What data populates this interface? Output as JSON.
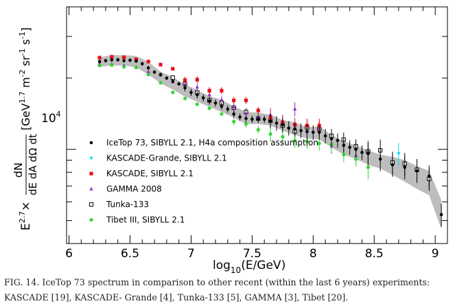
{
  "figure": {
    "xlabel_main": "log",
    "xlabel_sub": "10",
    "xlabel_rest": "(E/GeV)",
    "ylabel_numerator": "dN",
    "ylabel_denominator": "dE dA dΩ dt",
    "ylabel_prefix": "E",
    "ylabel_prefix_exp": "2.7",
    "ylabel_times": "×",
    "ylabel_unit_open": "[GeV",
    "ylabel_unit_exp1": "1.7",
    "ylabel_unit_m": " m",
    "ylabel_unit_exp2": "-2",
    "ylabel_unit_sr": " sr",
    "ylabel_unit_exp3": "-1",
    "ylabel_unit_s": " s",
    "ylabel_unit_exp4": "-1",
    "ylabel_unit_close": "]",
    "y_tick_base": "10",
    "y_tick_exp": "4"
  },
  "caption": {
    "line1": "FIG. 14.  IceTop 73 spectrum in comparison to other recent (within the last 6 years) experiments:",
    "line2": "KASCADE [19], KASCADE- Grande [4], Tunka-133 [5], GAMMA [3], Tibet [20]."
  },
  "chart_data": {
    "type": "scatter",
    "x_scale": "linear",
    "y_scale": "log",
    "xlim": [
      5.98,
      9.1
    ],
    "ylim": [
      4000,
      40000
    ],
    "x_ticks": [
      6,
      6.5,
      7,
      7.5,
      8,
      8.5,
      9
    ],
    "x_tick_labels": [
      "6",
      "6.5",
      "7",
      "7.5",
      "8",
      "8.5",
      "9"
    ],
    "y_ticks": [
      10000
    ],
    "legend_position": "lower-left",
    "band": {
      "name": "IceTop 73 systematic uncertainty band",
      "color": "#bdbdbd",
      "x": [
        6.25,
        6.35,
        6.45,
        6.55,
        6.65,
        6.75,
        6.85,
        6.95,
        7.05,
        7.15,
        7.25,
        7.35,
        7.45,
        7.55,
        7.65,
        7.75,
        7.85,
        7.95,
        8.05,
        8.15,
        8.25,
        8.35,
        8.45,
        8.55,
        8.65,
        8.75,
        8.85,
        8.95,
        9.05
      ],
      "upper": [
        24500,
        25000,
        25000,
        24800,
        23400,
        21300,
        20200,
        18800,
        17800,
        16800,
        16200,
        15200,
        14400,
        14300,
        14000,
        13300,
        13000,
        12400,
        12500,
        11500,
        10800,
        10400,
        9900,
        9500,
        9300,
        9000,
        8500,
        8100,
        6100
      ],
      "lower": [
        22300,
        22600,
        22600,
        22200,
        20700,
        19000,
        17900,
        16700,
        15900,
        15100,
        14400,
        13600,
        12800,
        12800,
        12600,
        12000,
        11500,
        11100,
        11000,
        10200,
        9500,
        9100,
        8600,
        8300,
        7800,
        7300,
        6800,
        6400,
        4600
      ]
    },
    "series": [
      {
        "name": "IceTop 73, SIBYLL 2.1, H4a composition assumption",
        "marker": "circle",
        "color": "#000000",
        "x": [
          6.25,
          6.3,
          6.35,
          6.4,
          6.45,
          6.5,
          6.55,
          6.6,
          6.65,
          6.7,
          6.75,
          6.8,
          6.85,
          6.9,
          6.95,
          7.0,
          7.05,
          7.1,
          7.15,
          7.2,
          7.25,
          7.3,
          7.35,
          7.4,
          7.45,
          7.5,
          7.55,
          7.6,
          7.65,
          7.7,
          7.75,
          7.8,
          7.85,
          7.9,
          7.95,
          8.0,
          8.05,
          8.1,
          8.15,
          8.2,
          8.25,
          8.3,
          8.35,
          8.4,
          8.45,
          8.55,
          8.65,
          8.75,
          8.85,
          8.95,
          9.05
        ],
        "y": [
          23500,
          23700,
          23900,
          23900,
          23700,
          23800,
          23600,
          23000,
          22100,
          21200,
          20700,
          20000,
          19400,
          18900,
          18200,
          17400,
          17000,
          16500,
          16000,
          15700,
          15200,
          14800,
          14100,
          13700,
          13500,
          13400,
          13400,
          13400,
          13200,
          12900,
          12700,
          12300,
          12200,
          12000,
          11900,
          11800,
          11800,
          11400,
          11100,
          10900,
          10400,
          10200,
          10000,
          9700,
          9600,
          9100,
          8600,
          8400,
          8100,
          7700,
          5300
        ]
      },
      {
        "name": "KASCADE-Grande, SIBYLL 2.1",
        "marker": "triangle-down",
        "color": "#00e5ee",
        "x": [
          8.7
        ],
        "y": [
          9600
        ]
      },
      {
        "name": "KASCADE, SIBYLL 2.1",
        "marker": "square",
        "color": "#e8121b",
        "x": [
          6.25,
          6.35,
          6.45,
          6.55,
          6.65,
          6.75,
          6.85,
          6.95,
          7.05,
          7.15,
          7.25,
          7.35,
          7.45,
          7.55,
          7.65,
          7.75,
          7.85,
          7.95,
          8.05
        ],
        "y": [
          24400,
          24600,
          24500,
          24000,
          23500,
          22800,
          21900,
          19600,
          19700,
          17700,
          17700,
          16100,
          16100,
          14600,
          13600,
          13000,
          12700,
          12600,
          12600
        ]
      },
      {
        "name": "GAMMA 2008",
        "marker": "triangle-up",
        "color": "#9b27c8",
        "x": [
          6.25,
          6.35,
          6.45,
          6.55,
          6.65,
          6.75,
          6.85,
          6.95,
          7.05,
          7.15,
          7.25,
          7.35,
          7.45,
          7.55,
          7.65,
          7.75,
          7.85,
          7.95,
          8.05,
          8.15,
          8.25,
          8.35,
          8.45
        ],
        "y": [
          23000,
          22900,
          22600,
          22200,
          21300,
          20600,
          19300,
          18800,
          18300,
          17000,
          16200,
          15100,
          14200,
          13700,
          14000,
          13100,
          14800,
          11900,
          12300,
          10300,
          10500,
          9400,
          9800
        ]
      },
      {
        "name": "Tunka-133",
        "marker": "square-open",
        "color": "#000000",
        "x": [
          6.85,
          6.95,
          7.05,
          7.15,
          7.25,
          7.35,
          7.45,
          7.55,
          7.65,
          7.75,
          7.85,
          7.95,
          8.05,
          8.15,
          8.25,
          8.35,
          8.45,
          8.55,
          8.65,
          8.75,
          8.85,
          8.95
        ],
        "y": [
          20100,
          18900,
          17400,
          16100,
          15700,
          15000,
          14400,
          13500,
          13200,
          12600,
          11900,
          12400,
          12200,
          11400,
          11000,
          10300,
          9800,
          9900,
          8800,
          8700,
          8200,
          7500
        ]
      },
      {
        "name": "Tibet III, SIBYLL 2.1",
        "marker": "asterisk",
        "color": "#2bd42b",
        "x": [
          6.25,
          6.35,
          6.45,
          6.55,
          6.65,
          6.75,
          6.85,
          6.95,
          7.05,
          7.15,
          7.25,
          7.35,
          7.45,
          7.55,
          7.65,
          7.75,
          7.85,
          7.95,
          8.05,
          8.15,
          8.25,
          8.35,
          8.45
        ],
        "y": [
          22600,
          22700,
          22300,
          22200,
          20700,
          19100,
          17400,
          16400,
          15500,
          14900,
          14100,
          13100,
          12800,
          12100,
          11600,
          11300,
          10900,
          10800,
          10600,
          10500,
          9500,
          9100,
          8400
        ]
      }
    ]
  }
}
